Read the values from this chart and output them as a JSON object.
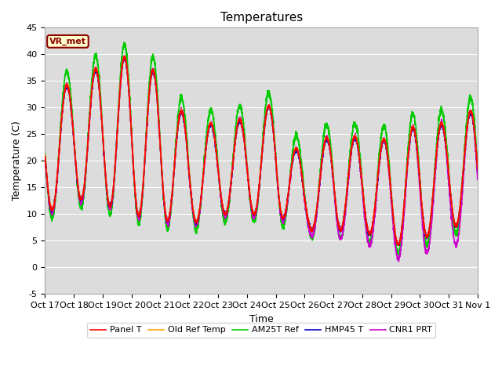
{
  "title": "Temperatures",
  "xlabel": "Time",
  "ylabel": "Temperature (C)",
  "ylim": [
    -5,
    45
  ],
  "xlim": [
    0,
    15
  ],
  "bg_color": "#dcdcdc",
  "fig_color": "#ffffff",
  "annotation": "VR_met",
  "annotation_color": "#8b0000",
  "annotation_bg": "#ffffcc",
  "grid_color": "#ffffff",
  "xtick_labels": [
    "Oct 17",
    "Oct 18",
    "Oct 19",
    "Oct 20",
    "Oct 21",
    "Oct 22",
    "Oct 23",
    "Oct 24",
    "Oct 25",
    "Oct 26",
    "Oct 27",
    "Oct 28",
    "Oct 29",
    "Oct 30",
    "Oct 31",
    "Nov 1"
  ],
  "ytick_values": [
    -5,
    0,
    5,
    10,
    15,
    20,
    25,
    30,
    35,
    40,
    45
  ],
  "legend": [
    {
      "label": "Panel T",
      "color": "#ff0000",
      "lw": 1.2
    },
    {
      "label": "Old Ref Temp",
      "color": "#ffa500",
      "lw": 1.2
    },
    {
      "label": "AM25T Ref",
      "color": "#00cc00",
      "lw": 1.2
    },
    {
      "label": "HMP45 T",
      "color": "#0000cd",
      "lw": 1.2
    },
    {
      "label": "CNR1 PRT",
      "color": "#cc00cc",
      "lw": 1.2
    }
  ],
  "title_fontsize": 11,
  "axis_fontsize": 9,
  "tick_fontsize": 8,
  "legend_fontsize": 8,
  "peaks": [
    32,
    35,
    38,
    40,
    36,
    27,
    27,
    28,
    31,
    19,
    26,
    24,
    24,
    27,
    27,
    30
  ],
  "mins": [
    10,
    13,
    12,
    10,
    9,
    8,
    10,
    10,
    10,
    7,
    7,
    7,
    4,
    5,
    8,
    7
  ]
}
